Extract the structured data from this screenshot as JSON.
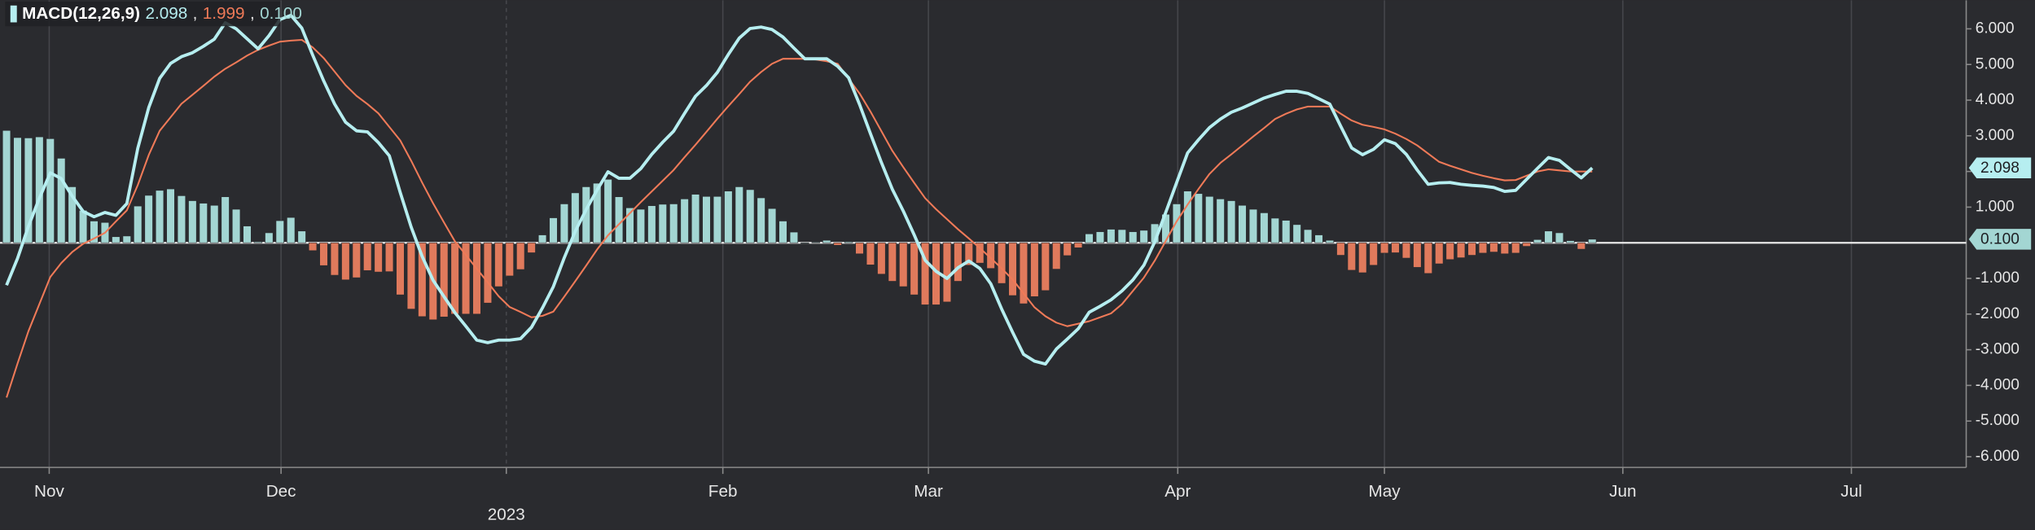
{
  "chart_data": {
    "type": "macd",
    "title": "MACD(12,26,9)",
    "legend_separator": ",",
    "background": "#2a2b2f",
    "xlim": [
      -0.6,
      179.2
    ],
    "xticks": [
      {
        "value": 3.9,
        "label": "Nov"
      },
      {
        "value": 25.1,
        "label": "Dec"
      },
      {
        "value": 45.7,
        "label": "2023"
      },
      {
        "value": 65.5,
        "label": "Feb"
      },
      {
        "value": 84.3,
        "label": "Mar"
      },
      {
        "value": 107.1,
        "label": "Apr"
      },
      {
        "value": 126,
        "label": "May"
      },
      {
        "value": 147.8,
        "label": "Jun"
      },
      {
        "value": 168.7,
        "label": "Jul"
      }
    ],
    "ylim": [
      -6.3,
      6.8
    ],
    "yticks": [
      {
        "value": 6,
        "label": "6.000"
      },
      {
        "value": 5,
        "label": "5.000"
      },
      {
        "value": 4,
        "label": "4.000"
      },
      {
        "value": 3,
        "label": "3.000"
      },
      {
        "value": 2,
        "label": "2.000"
      },
      {
        "value": 1,
        "label": "1.000"
      },
      {
        "value": -1,
        "label": "-1.000"
      },
      {
        "value": -2,
        "label": "-2.000"
      },
      {
        "value": -3,
        "label": "-3.000"
      },
      {
        "value": -4,
        "label": "-4.000"
      },
      {
        "value": -5,
        "label": "-5.000"
      },
      {
        "value": -6,
        "label": "-6.000"
      }
    ],
    "grid": true,
    "series": [
      {
        "type": "line",
        "color": "#b6eef0",
        "badge": true,
        "last_value_label": "2.098",
        "values": [
          -1.19,
          -0.44,
          0.46,
          1.25,
          1.96,
          1.8,
          1.31,
          0.88,
          0.73,
          0.85,
          0.77,
          1.1,
          2.65,
          3.79,
          4.61,
          5.03,
          5.22,
          5.33,
          5.51,
          5.71,
          6.17,
          6.0,
          5.72,
          5.44,
          5.81,
          6.26,
          6.38,
          6.02,
          5.26,
          4.54,
          3.89,
          3.38,
          3.14,
          3.11,
          2.81,
          2.44,
          1.41,
          0.44,
          -0.38,
          -1.05,
          -1.51,
          -1.96,
          -2.34,
          -2.73,
          -2.8,
          -2.73,
          -2.73,
          -2.69,
          -2.37,
          -1.83,
          -1.23,
          -0.42,
          0.32,
          0.93,
          1.48,
          1.99,
          1.81,
          1.81,
          2.08,
          2.48,
          2.82,
          3.13,
          3.63,
          4.11,
          4.41,
          4.78,
          5.28,
          5.74,
          6.01,
          6.05,
          5.98,
          5.77,
          5.46,
          5.16,
          5.16,
          5.16,
          4.95,
          4.63,
          3.88,
          3.06,
          2.25,
          1.5,
          0.89,
          0.22,
          -0.49,
          -0.8,
          -1.0,
          -0.7,
          -0.51,
          -0.72,
          -1.15,
          -1.86,
          -2.51,
          -3.13,
          -3.32,
          -3.4,
          -2.98,
          -2.7,
          -2.41,
          -1.95,
          -1.78,
          -1.6,
          -1.35,
          -1.04,
          -0.63,
          0.03,
          0.85,
          1.69,
          2.52,
          2.89,
          3.23,
          3.47,
          3.66,
          3.78,
          3.92,
          4.06,
          4.16,
          4.25,
          4.25,
          4.19,
          4.04,
          3.89,
          3.27,
          2.66,
          2.47,
          2.62,
          2.89,
          2.78,
          2.48,
          2.04,
          1.64,
          1.68,
          1.69,
          1.64,
          1.61,
          1.59,
          1.55,
          1.44,
          1.47,
          1.78,
          2.09,
          2.39,
          2.31,
          2.06,
          1.82,
          2.098
        ]
      },
      {
        "type": "line",
        "color": "#ef7a58",
        "badge": false,
        "last_value_label": "1.999",
        "values": [
          -4.34,
          -3.39,
          -2.48,
          -1.72,
          -0.96,
          -0.57,
          -0.26,
          -0.03,
          0.12,
          0.28,
          0.6,
          0.91,
          1.62,
          2.46,
          3.14,
          3.52,
          3.9,
          4.15,
          4.4,
          4.66,
          4.88,
          5.06,
          5.25,
          5.41,
          5.53,
          5.64,
          5.67,
          5.69,
          5.48,
          5.18,
          4.8,
          4.42,
          4.12,
          3.89,
          3.63,
          3.25,
          2.87,
          2.3,
          1.69,
          1.11,
          0.57,
          0.04,
          -0.34,
          -0.73,
          -1.11,
          -1.5,
          -1.8,
          -1.94,
          -2.09,
          -2.05,
          -1.93,
          -1.51,
          -1.08,
          -0.64,
          -0.19,
          0.21,
          0.52,
          0.83,
          1.14,
          1.44,
          1.74,
          2.04,
          2.4,
          2.75,
          3.11,
          3.48,
          3.83,
          4.17,
          4.52,
          4.79,
          5.02,
          5.16,
          5.16,
          5.16,
          5.14,
          5.09,
          5.02,
          4.6,
          4.19,
          3.68,
          3.13,
          2.58,
          2.12,
          1.68,
          1.25,
          0.94,
          0.66,
          0.38,
          0.12,
          -0.15,
          -0.43,
          -0.72,
          -1.03,
          -1.42,
          -1.81,
          -2.06,
          -2.24,
          -2.34,
          -2.27,
          -2.2,
          -2.09,
          -1.98,
          -1.72,
          -1.35,
          -0.98,
          -0.5,
          0.05,
          0.6,
          1.07,
          1.51,
          1.93,
          2.24,
          2.48,
          2.73,
          2.98,
          3.22,
          3.47,
          3.62,
          3.74,
          3.82,
          3.82,
          3.82,
          3.62,
          3.43,
          3.31,
          3.25,
          3.18,
          3.06,
          2.91,
          2.73,
          2.5,
          2.27,
          2.16,
          2.06,
          1.96,
          1.88,
          1.81,
          1.75,
          1.76,
          1.88,
          2.0,
          2.06,
          2.03,
          2.0,
          2.0,
          1.999
        ]
      },
      {
        "type": "bar",
        "color": "#a3d6d3",
        "negative_color": "#e07a5c",
        "badge": true,
        "last_value_label": "0.100",
        "values": [
          3.15,
          2.95,
          2.94,
          2.97,
          2.92,
          2.37,
          1.57,
          0.91,
          0.61,
          0.57,
          0.17,
          0.19,
          1.03,
          1.33,
          1.47,
          1.51,
          1.32,
          1.18,
          1.11,
          1.05,
          1.29,
          0.94,
          0.47,
          0.03,
          0.28,
          0.62,
          0.71,
          0.33,
          -0.22,
          -0.64,
          -0.91,
          -1.04,
          -0.98,
          -0.78,
          -0.82,
          -0.81,
          -1.46,
          -1.86,
          -2.07,
          -2.16,
          -2.08,
          -2.0,
          -2.0,
          -2.0,
          -1.69,
          -1.23,
          -0.93,
          -0.75,
          -0.28,
          0.22,
          0.7,
          1.09,
          1.4,
          1.57,
          1.67,
          1.78,
          1.29,
          0.98,
          0.94,
          1.04,
          1.08,
          1.09,
          1.23,
          1.36,
          1.3,
          1.3,
          1.45,
          1.57,
          1.49,
          1.26,
          0.96,
          0.61,
          0.3,
          0,
          0.02,
          0.07,
          -0.07,
          0.03,
          -0.31,
          -0.62,
          -0.88,
          -1.08,
          -1.23,
          -1.46,
          -1.74,
          -1.74,
          -1.66,
          -1.08,
          -0.63,
          -0.57,
          -0.72,
          -1.14,
          -1.48,
          -1.71,
          -1.51,
          -1.34,
          -0.74,
          -0.36,
          -0.14,
          0.25,
          0.31,
          0.38,
          0.37,
          0.31,
          0.35,
          0.53,
          0.8,
          1.09,
          1.45,
          1.38,
          1.3,
          1.23,
          1.18,
          1.05,
          0.94,
          0.84,
          0.69,
          0.63,
          0.51,
          0.37,
          0.22,
          0.07,
          -0.35,
          -0.77,
          -0.84,
          -0.63,
          -0.29,
          -0.28,
          -0.43,
          -0.69,
          -0.86,
          -0.59,
          -0.47,
          -0.42,
          -0.35,
          -0.29,
          -0.26,
          -0.31,
          -0.29,
          -0.1,
          0.09,
          0.33,
          0.28,
          0.06,
          -0.18,
          0.1
        ]
      }
    ]
  }
}
